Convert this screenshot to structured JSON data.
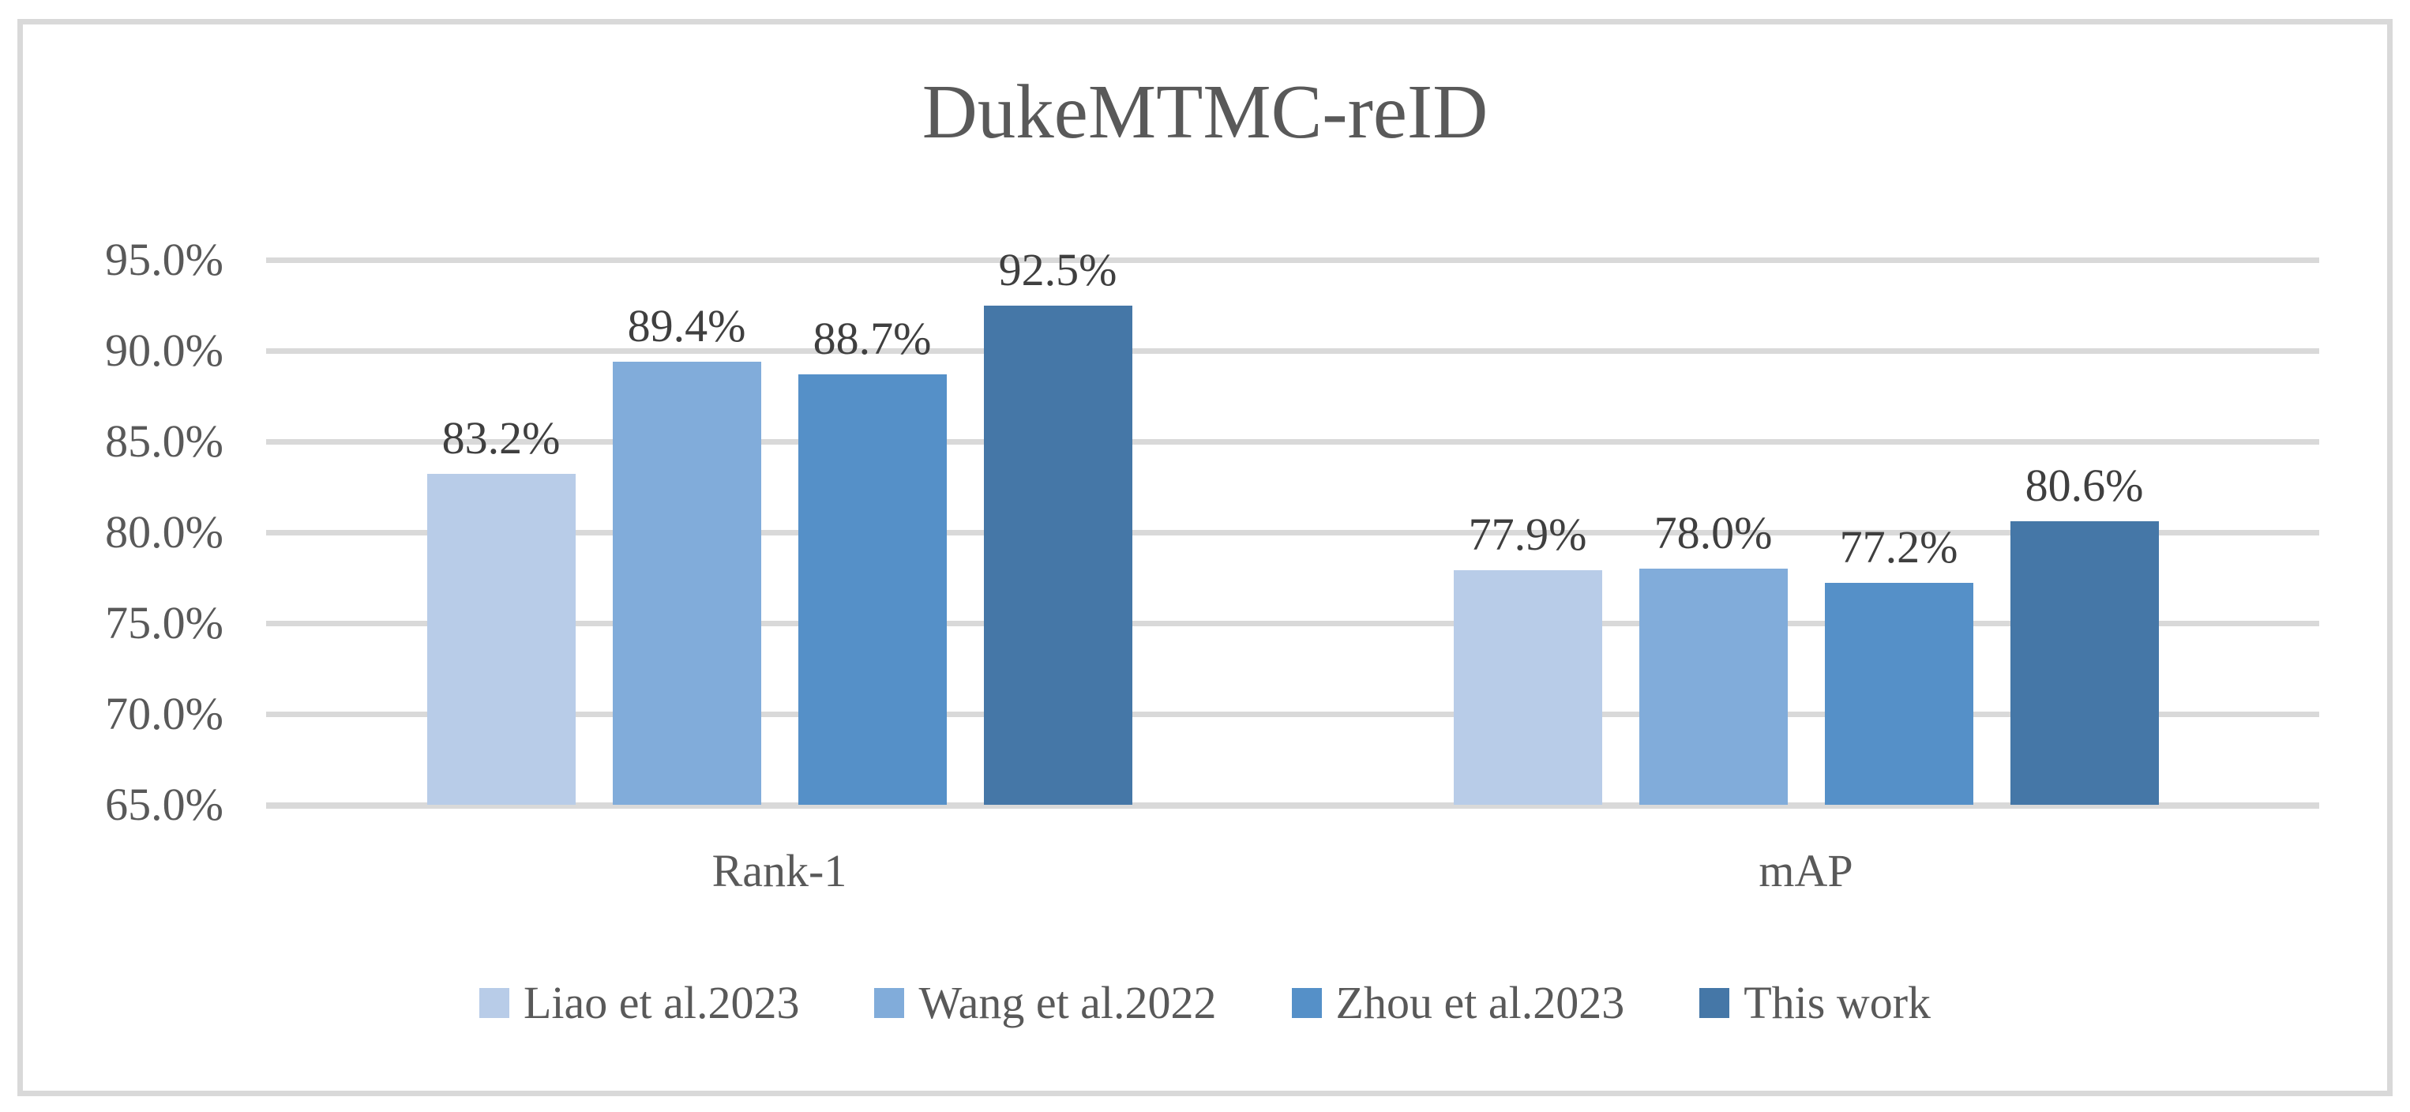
{
  "chart_data": {
    "type": "bar",
    "title": "DukeMTMC-reID",
    "categories": [
      "Rank-1",
      "mAP"
    ],
    "series": [
      {
        "name": "Liao et al.2023",
        "color": "#B8CCE8",
        "values": [
          83.2,
          77.9
        ],
        "labels": [
          "83.2%",
          "77.9%"
        ]
      },
      {
        "name": "Wang et al.2022",
        "color": "#81ACDA",
        "values": [
          89.4,
          78.0
        ],
        "labels": [
          "89.4%",
          "78.0%"
        ]
      },
      {
        "name": "Zhou et al.2023",
        "color": "#5590C8",
        "values": [
          88.7,
          77.2
        ],
        "labels": [
          "88.7%",
          "77.2%"
        ]
      },
      {
        "name": "This work",
        "color": "#4577A7",
        "values": [
          92.5,
          80.6
        ],
        "labels": [
          "92.5%",
          "80.6%"
        ]
      }
    ],
    "ylim": [
      65,
      95
    ],
    "ytick_step": 5,
    "yticks": [
      {
        "value": 95,
        "label": "95.0%"
      },
      {
        "value": 90,
        "label": "90.0%"
      },
      {
        "value": 85,
        "label": "85.0%"
      },
      {
        "value": 80,
        "label": "80.0%"
      },
      {
        "value": 75,
        "label": "75.0%"
      },
      {
        "value": 70,
        "label": "70.0%"
      },
      {
        "value": 65,
        "label": "65.0%"
      }
    ],
    "grid": true,
    "legend_position": "bottom",
    "xlabel": "",
    "ylabel": "",
    "style": {
      "grid_color": "#D9D9D9",
      "axis_line_color": "#D9D9D9",
      "frame_border_color": "#D9D9D9",
      "title_color": "#595959",
      "tick_label_color": "#595959",
      "data_label_color": "#3F3F3F",
      "background": "#FFFFFF"
    }
  }
}
